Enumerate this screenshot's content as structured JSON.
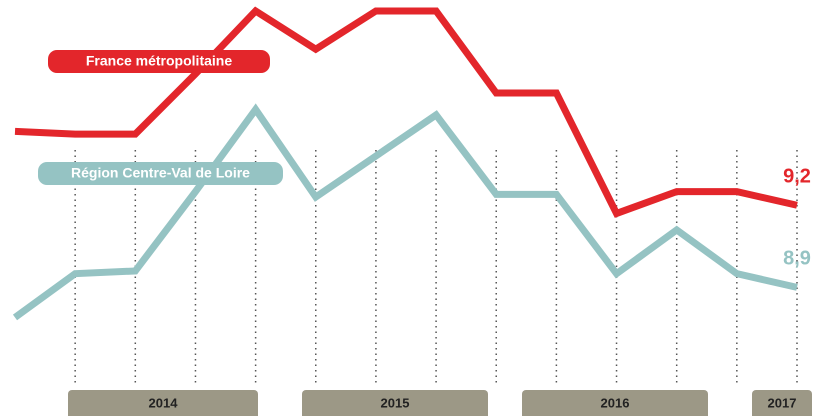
{
  "chart_data": {
    "type": "line",
    "categories": [
      null,
      null,
      null,
      null,
      null,
      null,
      null,
      null,
      null,
      null,
      null,
      null,
      null,
      null
    ],
    "year_labels": [
      "2014",
      "2015",
      "2016",
      "2017"
    ],
    "ylim": [
      8.43,
      9.95
    ],
    "series": [
      {
        "name": "France métropolitaine",
        "color": "#e3262b",
        "values": [
          9.47,
          9.46,
          9.46,
          9.68,
          9.91,
          9.77,
          9.91,
          9.91,
          9.61,
          9.61,
          9.17,
          9.25,
          9.25,
          9.2
        ],
        "value_labels": [
          null,
          null,
          null,
          null,
          null,
          null,
          null,
          null,
          null,
          null,
          null,
          null,
          null,
          "9,2"
        ]
      },
      {
        "name": "Région Centre-Val de Loire",
        "color": "#95c3c3",
        "values": [
          8.79,
          8.95,
          8.96,
          9.25,
          9.55,
          9.23,
          9.38,
          9.53,
          9.24,
          9.24,
          8.95,
          9.11,
          8.95,
          8.9
        ],
        "value_labels": [
          null,
          null,
          null,
          null,
          null,
          null,
          null,
          null,
          null,
          null,
          null,
          null,
          null,
          "8,9"
        ]
      }
    ]
  }
}
